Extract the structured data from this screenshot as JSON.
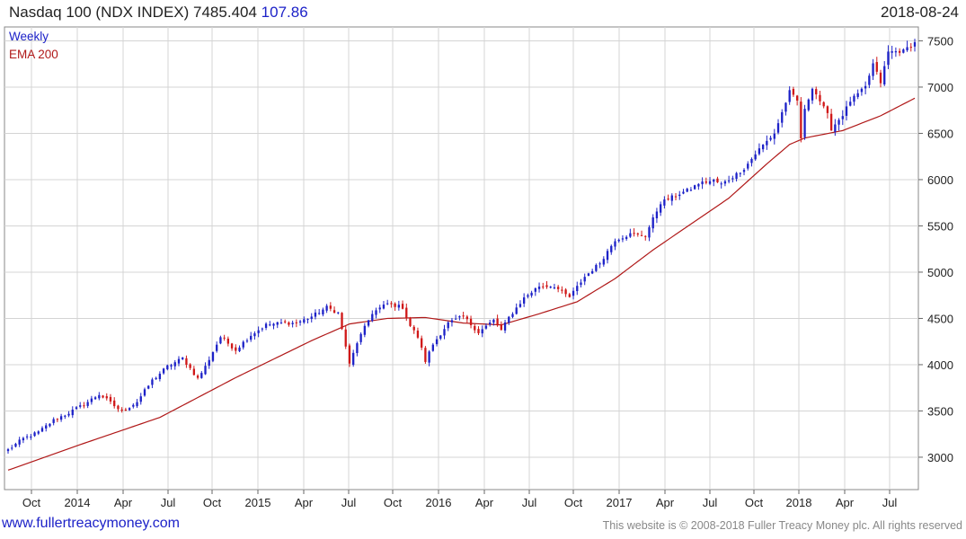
{
  "header": {
    "title": "Nasdaq 100 (NDX INDEX) 7485.404",
    "change": "107.86",
    "date": "2018-08-24"
  },
  "legend": {
    "weekly_label": "Weekly",
    "ema_label": "EMA 200",
    "weekly_color": "#1d22c8",
    "ema_color": "#b01818"
  },
  "footer": {
    "link": "www.fullertreacymoney.com",
    "copyright": "This website is © 2008-2018 Fuller Treacy Money plc. All rights reserved"
  },
  "colors": {
    "up": "#1d22c8",
    "down": "#d01818",
    "grid": "#d4d4d4",
    "ema": "#b01818"
  },
  "chart_data": {
    "type": "candlestick",
    "title": "Nasdaq 100 (NDX INDEX) 7485.404",
    "frequency": "Weekly",
    "ylim": [
      2650,
      7650
    ],
    "y_ticks": [
      3000,
      3500,
      4000,
      4500,
      5000,
      5500,
      6000,
      6500,
      7000,
      7500
    ],
    "x_tick_labels": [
      "Oct",
      "2014",
      "Apr",
      "Jul",
      "Oct",
      "2015",
      "Apr",
      "Jul",
      "Oct",
      "2016",
      "Apr",
      "Jul",
      "Oct",
      "2017",
      "Apr",
      "Jul",
      "Oct",
      "2018",
      "Apr",
      "Jul"
    ],
    "grid": true,
    "legend_position": "top-left",
    "price_anchors": [
      [
        0,
        3080
      ],
      [
        4,
        3200
      ],
      [
        8,
        3270
      ],
      [
        12,
        3400
      ],
      [
        16,
        3480
      ],
      [
        20,
        3570
      ],
      [
        24,
        3680
      ],
      [
        26,
        3620
      ],
      [
        30,
        3490
      ],
      [
        34,
        3600
      ],
      [
        38,
        3830
      ],
      [
        42,
        3980
      ],
      [
        46,
        4070
      ],
      [
        50,
        3850
      ],
      [
        52,
        3980
      ],
      [
        56,
        4300
      ],
      [
        60,
        4160
      ],
      [
        64,
        4320
      ],
      [
        68,
        4430
      ],
      [
        72,
        4450
      ],
      [
        76,
        4450
      ],
      [
        80,
        4520
      ],
      [
        84,
        4620
      ],
      [
        87,
        4560
      ],
      [
        89,
        4200
      ],
      [
        90,
        4000
      ],
      [
        92,
        4240
      ],
      [
        96,
        4560
      ],
      [
        100,
        4660
      ],
      [
        104,
        4620
      ],
      [
        106,
        4420
      ],
      [
        108,
        4300
      ],
      [
        110,
        4040
      ],
      [
        112,
        4220
      ],
      [
        116,
        4450
      ],
      [
        120,
        4520
      ],
      [
        124,
        4350
      ],
      [
        128,
        4480
      ],
      [
        130,
        4370
      ],
      [
        132,
        4510
      ],
      [
        136,
        4720
      ],
      [
        140,
        4850
      ],
      [
        144,
        4850
      ],
      [
        146,
        4780
      ],
      [
        148,
        4730
      ],
      [
        152,
        4950
      ],
      [
        156,
        5100
      ],
      [
        160,
        5350
      ],
      [
        164,
        5410
      ],
      [
        168,
        5400
      ],
      [
        172,
        5750
      ],
      [
        176,
        5830
      ],
      [
        180,
        5900
      ],
      [
        182,
        5960
      ],
      [
        186,
        5990
      ],
      [
        188,
        5950
      ],
      [
        190,
        6000
      ],
      [
        194,
        6120
      ],
      [
        198,
        6330
      ],
      [
        202,
        6500
      ],
      [
        206,
        6950
      ],
      [
        208,
        6850
      ],
      [
        209,
        6450
      ],
      [
        210,
        6750
      ],
      [
        212,
        7000
      ],
      [
        214,
        6850
      ],
      [
        216,
        6700
      ],
      [
        217,
        6550
      ],
      [
        218,
        6600
      ],
      [
        220,
        6700
      ],
      [
        222,
        6850
      ],
      [
        226,
        7000
      ],
      [
        228,
        7250
      ],
      [
        230,
        7050
      ],
      [
        232,
        7380
      ],
      [
        236,
        7390
      ],
      [
        239,
        7485
      ]
    ],
    "ema_anchors": [
      [
        0,
        2860
      ],
      [
        20,
        3150
      ],
      [
        40,
        3430
      ],
      [
        60,
        3860
      ],
      [
        80,
        4260
      ],
      [
        90,
        4440
      ],
      [
        100,
        4500
      ],
      [
        110,
        4510
      ],
      [
        120,
        4450
      ],
      [
        130,
        4430
      ],
      [
        140,
        4550
      ],
      [
        150,
        4680
      ],
      [
        160,
        4930
      ],
      [
        170,
        5240
      ],
      [
        180,
        5520
      ],
      [
        190,
        5800
      ],
      [
        200,
        6170
      ],
      [
        206,
        6380
      ],
      [
        210,
        6450
      ],
      [
        220,
        6530
      ],
      [
        230,
        6690
      ],
      [
        239,
        6880
      ]
    ],
    "weeks": 240,
    "last_close": 7485.404,
    "change": 107.86,
    "ema_period": 200
  }
}
